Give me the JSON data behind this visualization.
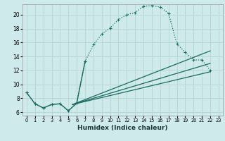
{
  "bg_color": "#ceeaea",
  "grid_color": "#b8d8d8",
  "line_color": "#1a6b60",
  "xlabel": "Humidex (Indice chaleur)",
  "xlim": [
    -0.5,
    23.5
  ],
  "ylim": [
    5.5,
    21.5
  ],
  "yticks": [
    6,
    8,
    10,
    12,
    14,
    16,
    18,
    20
  ],
  "xticks": [
    0,
    1,
    2,
    3,
    4,
    5,
    6,
    7,
    8,
    9,
    10,
    11,
    12,
    13,
    14,
    15,
    16,
    17,
    18,
    19,
    20,
    21,
    22,
    23
  ],
  "curve1_x": [
    0,
    1,
    2,
    3,
    4,
    5,
    6,
    7,
    8,
    9,
    10,
    11,
    12,
    13,
    14,
    15,
    16,
    17,
    18,
    19,
    20,
    21,
    22
  ],
  "curve1_y": [
    8.8,
    7.2,
    6.6,
    7.1,
    7.2,
    6.2,
    7.3,
    13.3,
    15.7,
    17.2,
    18.1,
    19.3,
    20.0,
    20.3,
    21.2,
    21.3,
    21.1,
    20.2,
    15.8,
    14.6,
    13.5,
    13.5,
    12.0
  ],
  "curve2_x": [
    0,
    1,
    2,
    3,
    4,
    5,
    6,
    7
  ],
  "curve2_y": [
    8.8,
    7.2,
    6.6,
    7.1,
    7.2,
    6.2,
    7.3,
    13.3
  ],
  "line1_x": [
    5.5,
    22
  ],
  "line1_y": [
    7.1,
    14.8
  ],
  "line2_x": [
    5.5,
    22
  ],
  "line2_y": [
    7.1,
    13.0
  ],
  "line3_x": [
    5.5,
    22
  ],
  "line3_y": [
    7.1,
    11.8
  ]
}
